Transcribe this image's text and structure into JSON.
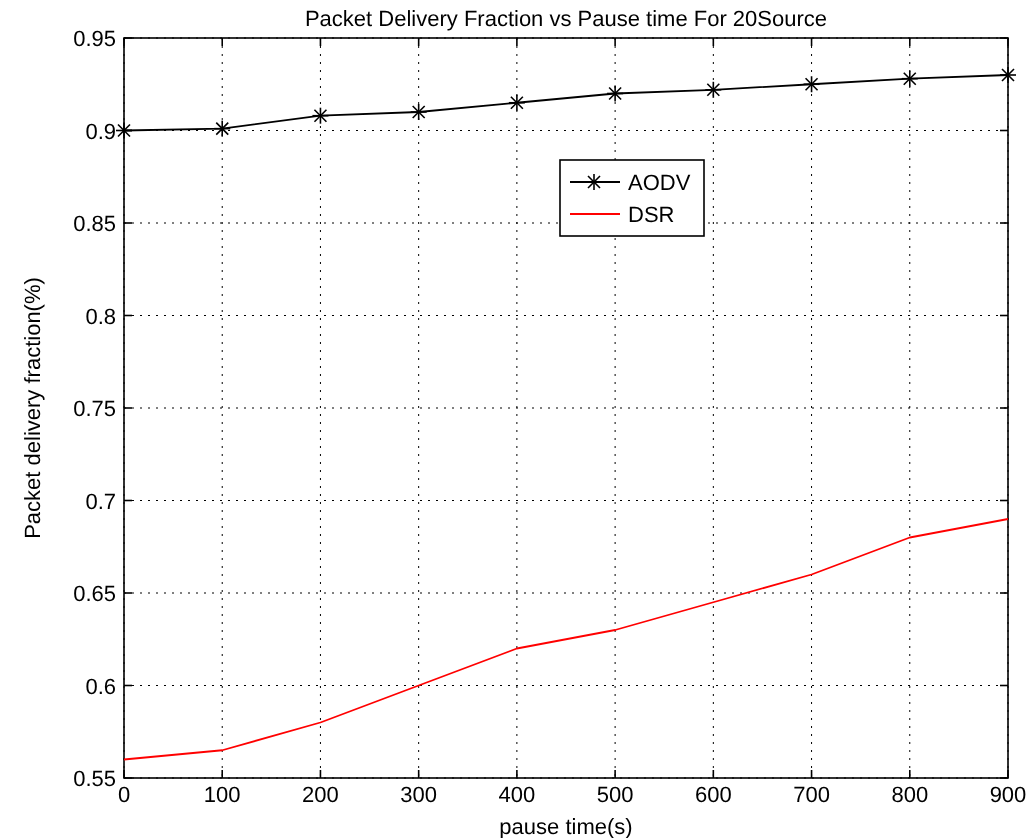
{
  "chart_data": {
    "type": "line",
    "title": "Packet Delivery Fraction vs Pause time For 20Source",
    "xlabel": "pause time(s)",
    "ylabel": "Packet delivery fraction(%)",
    "x": [
      0,
      100,
      200,
      300,
      400,
      500,
      600,
      700,
      800,
      900
    ],
    "series": [
      {
        "name": "AODV",
        "color": "#000000",
        "marker": "cross",
        "values": [
          0.9,
          0.901,
          0.908,
          0.91,
          0.915,
          0.92,
          0.922,
          0.925,
          0.928,
          0.93
        ]
      },
      {
        "name": "DSR",
        "color": "#ff0000",
        "marker": "none",
        "values": [
          0.56,
          0.565,
          0.58,
          0.6,
          0.62,
          0.63,
          0.645,
          0.66,
          0.68,
          0.69
        ]
      }
    ],
    "xlim": [
      0,
      900
    ],
    "xticks": [
      0,
      100,
      200,
      300,
      400,
      500,
      600,
      700,
      800,
      900
    ],
    "ylim": [
      0.55,
      0.95
    ],
    "yticks": [
      0.55,
      0.6,
      0.65,
      0.7,
      0.75,
      0.8,
      0.85,
      0.9,
      0.95
    ],
    "grid": true,
    "legend": "top right",
    "line_style": "solid"
  }
}
